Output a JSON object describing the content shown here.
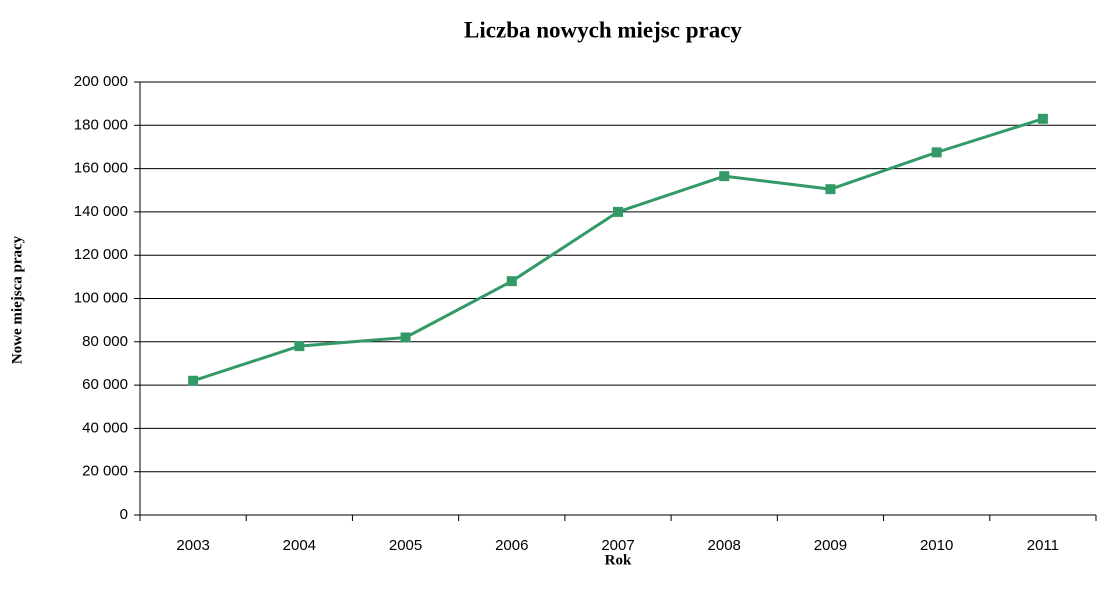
{
  "chart_data": {
    "type": "line",
    "title": "Liczba nowych miejsc pracy",
    "x_label": "Rok",
    "y_label": "Nowe miejsca pracy",
    "categories": [
      "2003",
      "2004",
      "2005",
      "2006",
      "2007",
      "2008",
      "2009",
      "2010",
      "2011"
    ],
    "values": [
      62000,
      78000,
      82000,
      108000,
      140000,
      156500,
      150500,
      167500,
      183000
    ],
    "color": "#339966",
    "ylim": [
      0,
      200000
    ],
    "yticks": [
      0,
      {
        "value": 20000,
        "label": "20 000"
      },
      {
        "value": 40000,
        "label": "40 000"
      },
      {
        "value": 60000,
        "label": "60 000"
      },
      {
        "value": 80000,
        "label": "80 000"
      },
      {
        "value": 100000,
        "label": "100 000"
      },
      {
        "value": 120000,
        "label": "120 000"
      },
      {
        "value": 140000,
        "label": "140 000"
      },
      {
        "value": 160000,
        "label": "160 000"
      },
      {
        "value": 180000,
        "label": "180 000"
      },
      {
        "value": 200000,
        "label": "200 000"
      }
    ],
    "grid": true
  }
}
